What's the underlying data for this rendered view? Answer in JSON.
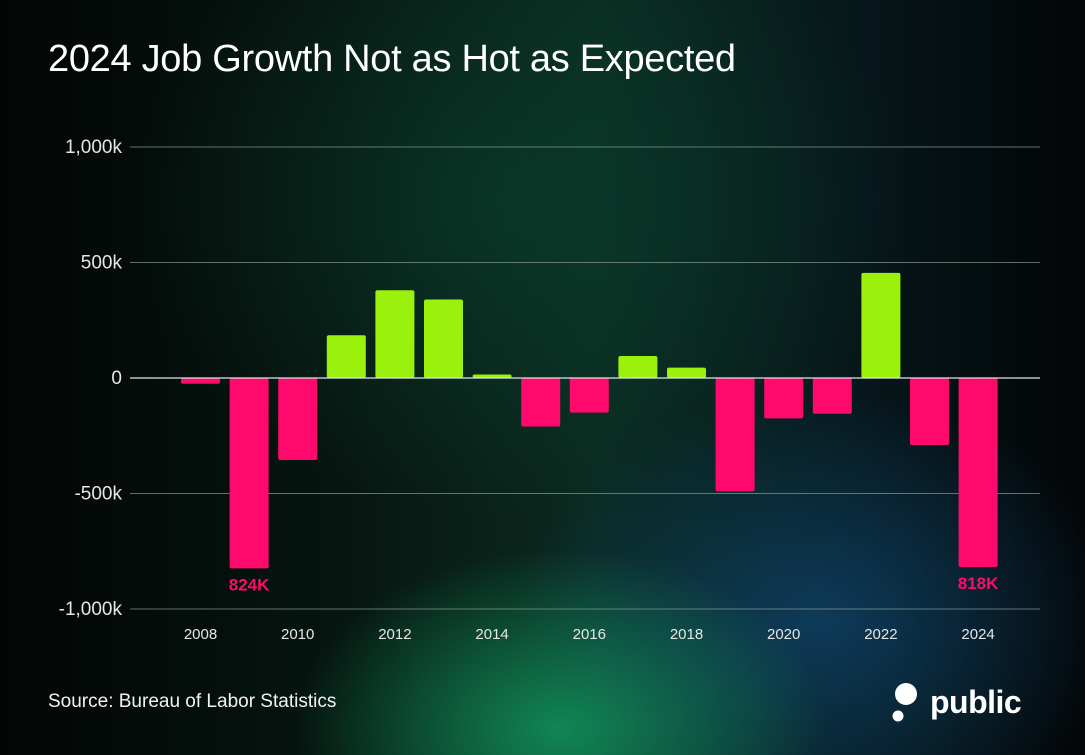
{
  "title": "2024 Job Growth Not as Hot as Expected",
  "source": "Source: Bureau of Labor Statistics",
  "brand": "public",
  "colors": {
    "positive": "#9af20c",
    "negative": "#ff0a6c",
    "grid": "#8a9a96",
    "zero_line": "#dfe8e5",
    "tick_text": "#e6e6e6"
  },
  "chart_data": {
    "type": "bar",
    "title": "2024 Job Growth Not as Hot as Expected",
    "xlabel": "",
    "ylabel": "",
    "ylim": [
      -1000,
      1000
    ],
    "yticks": [
      1000,
      500,
      0,
      -500,
      -1000
    ],
    "ytick_labels": [
      "1,000k",
      "500k",
      "0",
      "-500k",
      "-1,000k"
    ],
    "x_tick_labels": [
      "2008",
      "2010",
      "2012",
      "2014",
      "2016",
      "2018",
      "2020",
      "2022",
      "2024"
    ],
    "categories": [
      "2008",
      "2009",
      "2010",
      "2011",
      "2012",
      "2013",
      "2014",
      "2015",
      "2016",
      "2017",
      "2018",
      "2019",
      "2020",
      "2021",
      "2022",
      "2023",
      "2024"
    ],
    "values": [
      -25,
      -824,
      -355,
      185,
      380,
      340,
      15,
      -210,
      -150,
      95,
      45,
      -490,
      -175,
      -155,
      455,
      -290,
      -818
    ],
    "data_labels": [
      {
        "category": "2009",
        "text": "824K"
      },
      {
        "category": "2024",
        "text": "818K"
      }
    ],
    "grid": true,
    "legend": "none"
  }
}
